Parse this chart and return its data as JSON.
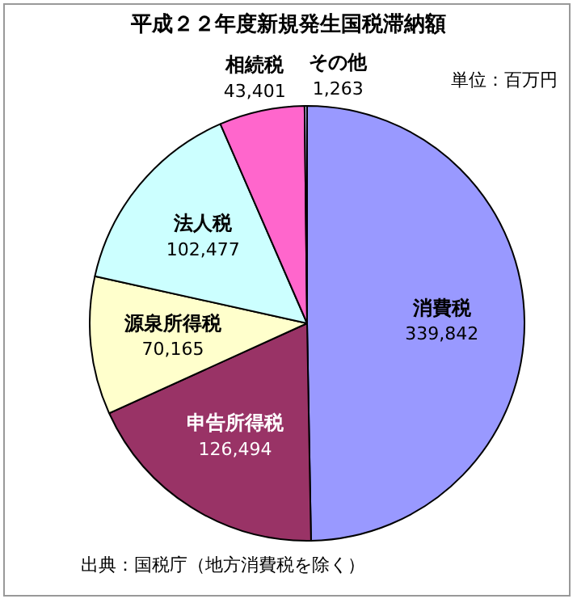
{
  "chart_data": {
    "type": "pie",
    "title": "平成２２年度新規発生国税滞納額",
    "categories": [
      "消費税",
      "申告所得税",
      "源泉所得税",
      "法人税",
      "相続税",
      "その他"
    ],
    "values": [
      339842,
      126494,
      70165,
      102477,
      43401,
      1263
    ],
    "value_labels": [
      "339,842",
      "126,494",
      "70,165",
      "102,477",
      "43,401",
      "1,263"
    ],
    "colors": [
      "#9999ff",
      "#993366",
      "#ffffcc",
      "#ccffff",
      "#ff66cc",
      "#ccccff"
    ],
    "annotations": [
      "単位：百万円",
      "出典：国税庁（地方消費税を除く）"
    ],
    "legend": false
  }
}
